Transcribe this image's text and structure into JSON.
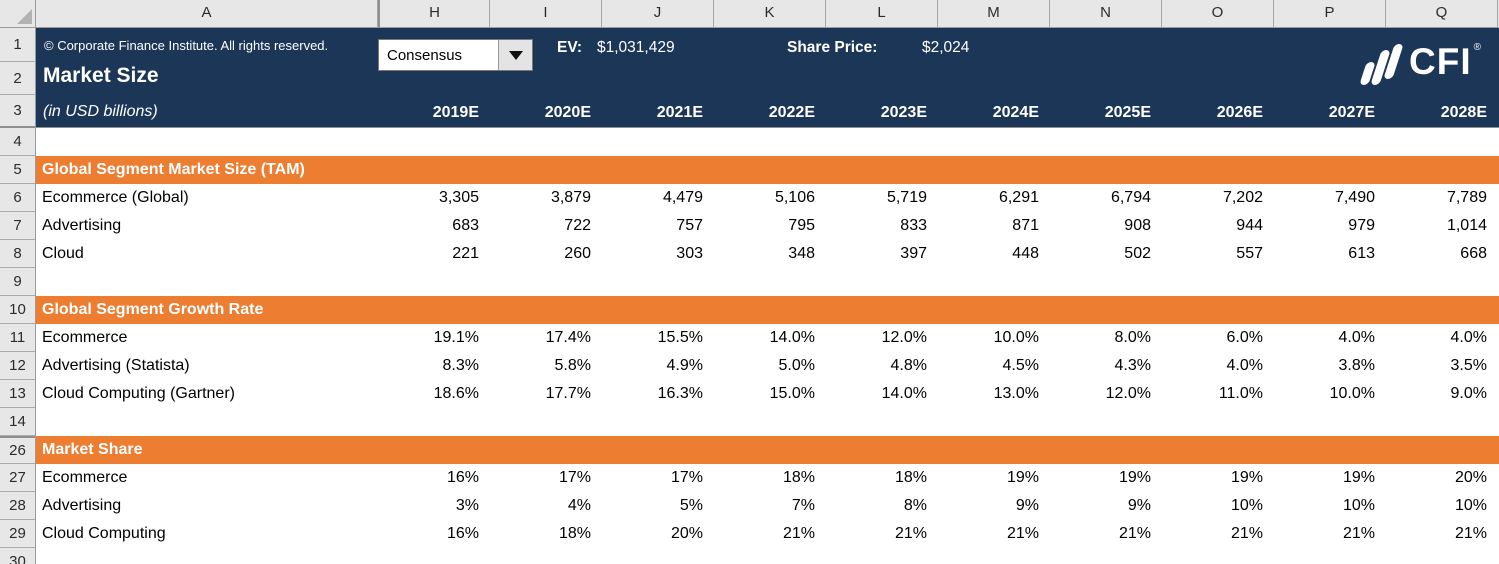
{
  "app": {
    "name": "excel-market-size-model"
  },
  "colors": {
    "banner_navy": "#1C3658",
    "section_orange": "#ED7D31",
    "header_gray": "#E7E7E7"
  },
  "header": {
    "copyright": "© Corporate Finance Institute. All rights reserved.",
    "title": "Market Size",
    "subtitle": "(in USD billions)",
    "scenario": "Consensus",
    "ev_label": "EV:",
    "ev_value": "$1,031,429",
    "share_price_label": "Share Price:",
    "share_price_value": "$2,024",
    "logo_text": "CFI",
    "logo_reg": "®"
  },
  "grid": {
    "column_letters": [
      "A",
      "H",
      "I",
      "J",
      "K",
      "L",
      "M",
      "N",
      "O",
      "P",
      "Q"
    ],
    "row_numbers_top": [
      "1",
      "2",
      "3"
    ],
    "row_numbers_body": [
      "4",
      "5",
      "6",
      "7",
      "8",
      "9",
      "10",
      "11",
      "12",
      "13",
      "14",
      "26",
      "27",
      "28",
      "29",
      "30"
    ],
    "years": [
      "2019E",
      "2020E",
      "2021E",
      "2022E",
      "2023E",
      "2024E",
      "2025E",
      "2026E",
      "2027E",
      "2028E"
    ]
  },
  "sections": [
    {
      "title": "Global Segment Market Size (TAM)",
      "rows": [
        {
          "label": "Ecommerce (Global)",
          "values": [
            "3,305",
            "3,879",
            "4,479",
            "5,106",
            "5,719",
            "6,291",
            "6,794",
            "7,202",
            "7,490",
            "7,789"
          ]
        },
        {
          "label": "Advertising",
          "values": [
            "683",
            "722",
            "757",
            "795",
            "833",
            "871",
            "908",
            "944",
            "979",
            "1,014"
          ]
        },
        {
          "label": "Cloud",
          "values": [
            "221",
            "260",
            "303",
            "348",
            "397",
            "448",
            "502",
            "557",
            "613",
            "668"
          ]
        }
      ]
    },
    {
      "title": "Global Segment Growth Rate",
      "rows": [
        {
          "label": "Ecommerce",
          "values": [
            "19.1%",
            "17.4%",
            "15.5%",
            "14.0%",
            "12.0%",
            "10.0%",
            "8.0%",
            "6.0%",
            "4.0%",
            "4.0%"
          ]
        },
        {
          "label": "Advertising (Statista)",
          "values": [
            "8.3%",
            "5.8%",
            "4.9%",
            "5.0%",
            "4.8%",
            "4.5%",
            "4.3%",
            "4.0%",
            "3.8%",
            "3.5%"
          ]
        },
        {
          "label": "Cloud Computing (Gartner)",
          "values": [
            "18.6%",
            "17.7%",
            "16.3%",
            "15.0%",
            "14.0%",
            "13.0%",
            "12.0%",
            "11.0%",
            "10.0%",
            "9.0%"
          ]
        }
      ]
    },
    {
      "title": "Market Share",
      "rows": [
        {
          "label": "Ecommerce",
          "values": [
            "16%",
            "17%",
            "17%",
            "18%",
            "18%",
            "19%",
            "19%",
            "19%",
            "19%",
            "20%"
          ]
        },
        {
          "label": "Advertising",
          "values": [
            "3%",
            "4%",
            "5%",
            "7%",
            "8%",
            "9%",
            "9%",
            "10%",
            "10%",
            "10%"
          ]
        },
        {
          "label": "Cloud Computing",
          "values": [
            "16%",
            "18%",
            "20%",
            "21%",
            "21%",
            "21%",
            "21%",
            "21%",
            "21%",
            "21%"
          ]
        }
      ]
    }
  ]
}
